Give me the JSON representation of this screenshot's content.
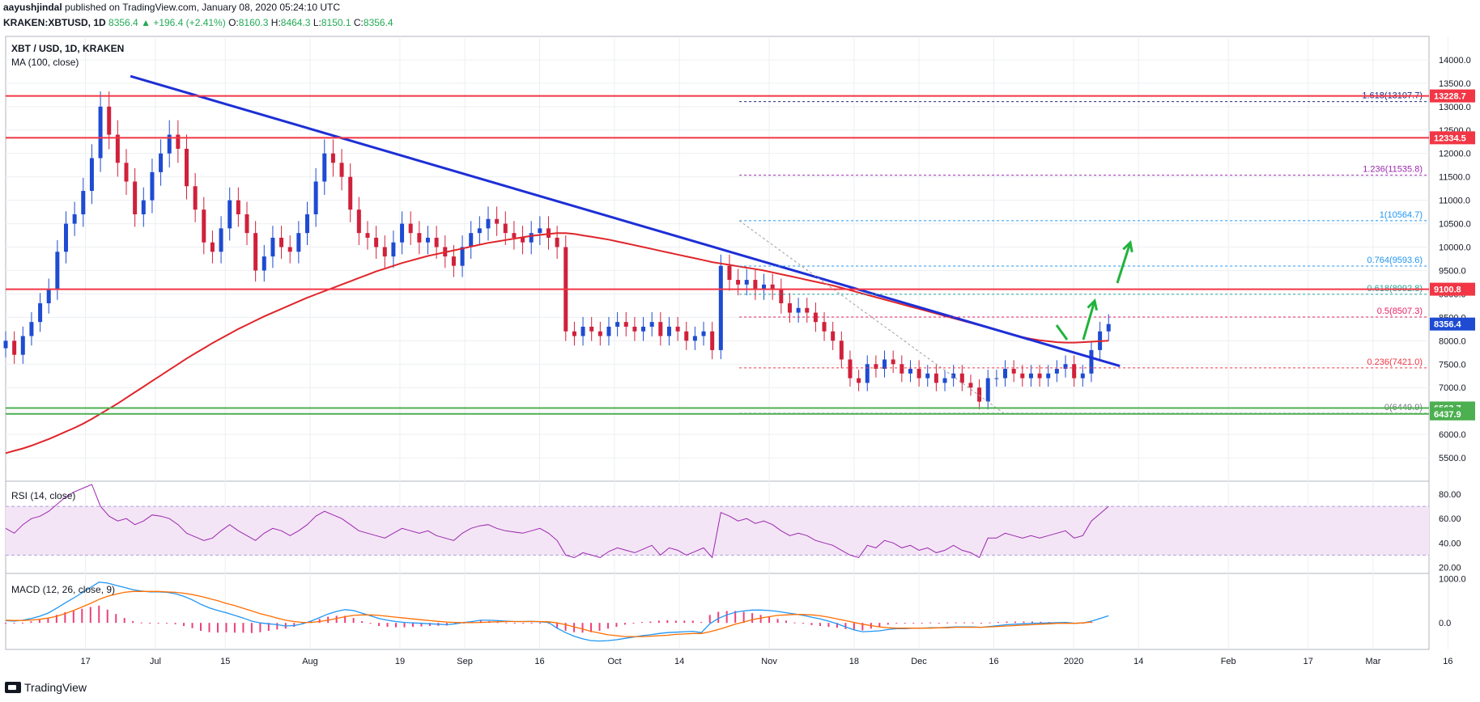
{
  "header": {
    "line1_author": "aayushjindal",
    "line1_rest": " published on TradingView.com, January 08, 2020 05:24:10 UTC",
    "symbol": "KRAKEN:XBTUSD, 1D",
    "last": "8356.4",
    "change": "+196.4 (+2.41%)",
    "o_label": "O:",
    "o": "8160.3",
    "h_label": "H:",
    "h": "8464.3",
    "l_label": "L:",
    "l": "8150.1",
    "c_label": "C:",
    "c": "8356.4"
  },
  "footer": {
    "brand": "TradingView"
  },
  "colors": {
    "up": "#1e4bd2",
    "down": "#d0213b",
    "ma": "#e0252a",
    "trend": "#1d2fd6",
    "resistance": "#f23645",
    "support": "#4caf50",
    "rsi": "#9c27b0",
    "rsi_band": "#f3e5f5",
    "macd": "#2196f3",
    "signal": "#ff6d00",
    "hist": "#ec407a",
    "arrows": "#21b33c"
  },
  "chart_data": [
    {
      "type": "candlestick",
      "title": "XBT / USD, 1D, KRAKEN",
      "subtitle": "MA (100, close)",
      "y_ticks": [
        14000,
        13500,
        13000,
        12500,
        12000,
        11500,
        11000,
        10500,
        10000,
        9500,
        9000,
        8500,
        8000,
        7500,
        7000,
        6500,
        6000,
        5500
      ],
      "y_tick_labels": [
        "14000.0",
        "13500.0",
        "13000.0",
        "12500.0",
        "12000.0",
        "11500.0",
        "11000.0",
        "10500.0",
        "10000.0",
        "9500.0",
        "9000.0",
        "8500.0",
        "8000.0",
        "7500.0",
        "7000.0",
        "6500.0",
        "6000.0",
        "5500.0"
      ],
      "ylim": [
        5000,
        14500
      ],
      "x_ticks": [
        "17",
        "Jul",
        "15",
        "Aug",
        "19",
        "Sep",
        "16",
        "Oct",
        "14",
        "Nov",
        "18",
        "Dec",
        "16",
        "2020",
        "14",
        "Feb",
        "17",
        "Mar",
        "16"
      ],
      "x_tick_dates": [
        "2019-06-17",
        "2019-07-01",
        "2019-07-15",
        "2019-08-01",
        "2019-08-19",
        "2019-09-01",
        "2019-09-16",
        "2019-10-01",
        "2019-10-14",
        "2019-11-01",
        "2019-11-18",
        "2019-12-01",
        "2019-12-16",
        "2020-01-01",
        "2020-01-14",
        "2020-02-01",
        "2020-02-17",
        "2020-03-01",
        "2020-03-16"
      ],
      "horizontal_levels": [
        {
          "label": "13228.7",
          "value": 13228.7,
          "color": "resistance"
        },
        {
          "label": "12334.5",
          "value": 12334.5,
          "color": "resistance"
        },
        {
          "label": "9100.8",
          "value": 9100.8,
          "color": "resistance"
        },
        {
          "label": "8356.4",
          "value": 8356.4,
          "color": "up"
        },
        {
          "label": "6563.7",
          "value": 6563.7,
          "color": "support"
        },
        {
          "label": "6437.9",
          "value": 6437.9,
          "color": "support"
        }
      ],
      "fib_levels": [
        {
          "label": "1.618(13107.7)",
          "value": 13107.7,
          "color": "#1a237e"
        },
        {
          "label": "1.236(11535.8)",
          "value": 11535.8,
          "color": "#9c27b0"
        },
        {
          "label": "1(10564.7)",
          "value": 10564.7,
          "color": "#2196f3"
        },
        {
          "label": "0.764(9593.6)",
          "value": 9593.6,
          "color": "#2196f3"
        },
        {
          "label": "0.618(8992.8)",
          "value": 8992.8,
          "color": "#26a69a"
        },
        {
          "label": "0.5(8507.3)",
          "value": 8507.3,
          "color": "#e91e63"
        },
        {
          "label": "0.236(7421.0)",
          "value": 7421.0,
          "color": "#f23645"
        },
        {
          "label": "0(6449.9)",
          "value": 6449.9,
          "color": "#787b86"
        }
      ],
      "closes": [
        8000,
        7700,
        8100,
        8400,
        8800,
        9100,
        9900,
        10500,
        10700,
        11200,
        11900,
        13000,
        12400,
        11800,
        11400,
        10700,
        11000,
        11600,
        12000,
        12400,
        12100,
        11300,
        10800,
        10100,
        9900,
        10400,
        11000,
        10700,
        10300,
        9500,
        9800,
        10200,
        10000,
        9900,
        10300,
        10700,
        11400,
        12000,
        11800,
        11500,
        10800,
        10300,
        10200,
        10000,
        9800,
        10100,
        10500,
        10300,
        10100,
        10200,
        10000,
        9800,
        9600,
        10000,
        10300,
        10400,
        10600,
        10500,
        10300,
        10200,
        10100,
        10300,
        10400,
        10200,
        10000,
        8200,
        8100,
        8300,
        8200,
        8100,
        8300,
        8400,
        8300,
        8200,
        8300,
        8400,
        8100,
        8300,
        8200,
        8000,
        8100,
        8200,
        7800,
        9600,
        9300,
        9200,
        9300,
        9100,
        9200,
        9100,
        8800,
        8600,
        8700,
        8600,
        8400,
        8200,
        8000,
        7600,
        7200,
        7100,
        7500,
        7400,
        7600,
        7500,
        7300,
        7400,
        7200,
        7300,
        7100,
        7200,
        7300,
        7100,
        7000,
        6700,
        7200,
        7200,
        7400,
        7300,
        7200,
        7300,
        7200,
        7300,
        7400,
        7500,
        7200,
        7300,
        7800,
        8200,
        8356.4
      ],
      "ma100": [
        5600,
        5650,
        5700,
        5760,
        5830,
        5900,
        5980,
        6060,
        6140,
        6230,
        6330,
        6440,
        6550,
        6660,
        6780,
        6900,
        7020,
        7140,
        7260,
        7380,
        7500,
        7620,
        7730,
        7840,
        7950,
        8050,
        8150,
        8250,
        8340,
        8430,
        8520,
        8600,
        8680,
        8760,
        8840,
        8920,
        8990,
        9060,
        9130,
        9200,
        9270,
        9340,
        9410,
        9480,
        9540,
        9600,
        9660,
        9710,
        9760,
        9810,
        9850,
        9890,
        9930,
        9970,
        10010,
        10050,
        10090,
        10120,
        10150,
        10180,
        10210,
        10240,
        10260,
        10280,
        10300,
        10300,
        10280,
        10250,
        10220,
        10190,
        10160,
        10120,
        10080,
        10040,
        10000,
        9960,
        9920,
        9880,
        9840,
        9800,
        9760,
        9720,
        9680,
        9650,
        9620,
        9590,
        9560,
        9530,
        9500,
        9460,
        9420,
        9380,
        9340,
        9300,
        9260,
        9220,
        9180,
        9130,
        9080,
        9030,
        8980,
        8930,
        8880,
        8830,
        8780,
        8730,
        8680,
        8630,
        8580,
        8530,
        8480,
        8430,
        8380,
        8330,
        8280,
        8230,
        8180,
        8130,
        8080,
        8040,
        8010,
        7990,
        7970,
        7960,
        7960,
        7970,
        7980,
        7990,
        8000
      ],
      "trendline": {
        "from_date": "2019-06-26",
        "from_value": 13650,
        "to_date": "2020-01-08",
        "to_value": 7520
      },
      "annotations": [
        "green arrows projecting upside"
      ]
    },
    {
      "type": "line",
      "title": "RSI (14, close)",
      "y_ticks": [
        80,
        60,
        40,
        20
      ],
      "y_tick_labels": [
        "80.00",
        "60.00",
        "40.00",
        "20.00"
      ],
      "band": [
        30,
        70
      ],
      "ylim": [
        15,
        90
      ],
      "values": [
        52,
        48,
        55,
        60,
        62,
        66,
        72,
        78,
        82,
        85,
        88,
        70,
        62,
        58,
        60,
        55,
        58,
        63,
        62,
        60,
        55,
        48,
        45,
        42,
        44,
        50,
        55,
        50,
        46,
        42,
        48,
        52,
        50,
        46,
        50,
        55,
        62,
        66,
        63,
        60,
        55,
        50,
        48,
        46,
        44,
        48,
        52,
        50,
        48,
        50,
        46,
        44,
        42,
        48,
        52,
        54,
        55,
        52,
        50,
        49,
        48,
        50,
        52,
        48,
        42,
        30,
        28,
        32,
        30,
        28,
        33,
        36,
        34,
        32,
        35,
        38,
        30,
        36,
        34,
        30,
        33,
        36,
        28,
        65,
        62,
        58,
        60,
        56,
        58,
        55,
        50,
        46,
        48,
        46,
        42,
        40,
        38,
        34,
        30,
        28,
        38,
        36,
        42,
        40,
        36,
        38,
        34,
        36,
        32,
        34,
        38,
        34,
        32,
        28,
        44,
        44,
        48,
        46,
        44,
        46,
        44,
        46,
        48,
        50,
        44,
        46,
        58,
        64,
        70
      ]
    },
    {
      "type": "line",
      "title": "MACD (12, 26, close, 9)",
      "y_ticks": [
        1000,
        0
      ],
      "y_tick_labels": [
        "1000.0",
        "0.0"
      ],
      "ylim": [
        -600,
        1100
      ],
      "macd": [
        50,
        40,
        60,
        100,
        150,
        220,
        330,
        450,
        560,
        680,
        800,
        920,
        900,
        850,
        800,
        750,
        720,
        700,
        700,
        690,
        660,
        600,
        520,
        420,
        340,
        280,
        230,
        170,
        110,
        40,
        0,
        -20,
        -40,
        -70,
        -60,
        -20,
        40,
        120,
        200,
        260,
        300,
        280,
        220,
        160,
        100,
        60,
        30,
        10,
        0,
        -10,
        -20,
        -30,
        -40,
        -20,
        10,
        30,
        60,
        60,
        50,
        40,
        30,
        30,
        35,
        25,
        10,
        -120,
        -220,
        -300,
        -360,
        -400,
        -410,
        -400,
        -380,
        -350,
        -320,
        -290,
        -270,
        -240,
        -220,
        -210,
        -200,
        -190,
        -220,
        -20,
        100,
        180,
        240,
        270,
        290,
        290,
        280,
        260,
        230,
        200,
        170,
        130,
        90,
        40,
        -20,
        -90,
        -160,
        -200,
        -190,
        -180,
        -150,
        -130,
        -130,
        -120,
        -120,
        -110,
        -110,
        -100,
        -90,
        -90,
        -90,
        -100,
        -80,
        -60,
        -40,
        -30,
        -20,
        -10,
        -5,
        0,
        5,
        10,
        -10,
        0,
        40,
        100,
        160
      ],
      "signal": [
        60,
        55,
        55,
        65,
        80,
        110,
        150,
        210,
        280,
        360,
        440,
        530,
        600,
        650,
        690,
        710,
        710,
        710,
        710,
        700,
        690,
        670,
        640,
        600,
        550,
        500,
        440,
        390,
        330,
        270,
        210,
        160,
        110,
        60,
        30,
        10,
        10,
        30,
        60,
        100,
        140,
        170,
        180,
        180,
        170,
        150,
        130,
        110,
        90,
        70,
        50,
        35,
        20,
        10,
        5,
        5,
        10,
        20,
        25,
        30,
        30,
        30,
        30,
        30,
        25,
        0,
        -40,
        -90,
        -140,
        -190,
        -230,
        -270,
        -290,
        -310,
        -310,
        -310,
        -300,
        -290,
        -280,
        -260,
        -250,
        -240,
        -240,
        -200,
        -150,
        -90,
        -30,
        20,
        70,
        110,
        140,
        170,
        180,
        190,
        190,
        180,
        160,
        130,
        90,
        50,
        10,
        -30,
        -60,
        -90,
        -110,
        -120,
        -120,
        -120,
        -120,
        -120,
        -110,
        -110,
        -100,
        -100,
        -100,
        -100,
        -90,
        -80,
        -70,
        -60,
        -50,
        -40,
        -30,
        -20,
        -10,
        -10,
        -10,
        0,
        20
      ]
    }
  ]
}
